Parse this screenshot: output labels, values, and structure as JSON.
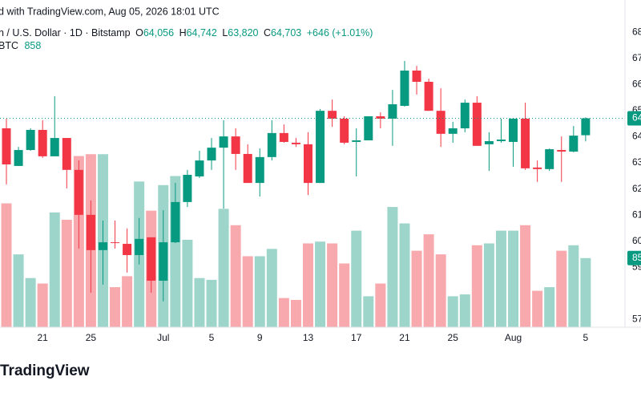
{
  "chart_data": {
    "type": "candlestick",
    "publisher_line": "d with TradingView.com, Aug 05, 2026 18:01 UTC",
    "symbol_line": "n / U.S. Dollar · 1D · Bitstamp",
    "ohlc_labels": [
      "O",
      "H",
      "L",
      "C"
    ],
    "ohlc_values": [
      {
        "value": 64056,
        "label": "64,056"
      },
      {
        "value": 64742,
        "label": "64,742"
      },
      {
        "value": 63820,
        "label": "63,820"
      },
      {
        "value": 64703,
        "label": "64,703"
      }
    ],
    "change": "+646 (+1.01%)",
    "volume_name": "BTC",
    "volume_last": 858,
    "brand": "TradingView",
    "up_color": "#089981",
    "down_color": "#f23645",
    "up_volume_color": "#9ed5cb",
    "down_volume_color": "#f7a9ad",
    "categories": [
      null,
      null,
      null,
      "21",
      null,
      null,
      null,
      "25",
      null,
      null,
      null,
      null,
      null,
      "Jul",
      null,
      null,
      null,
      "5",
      null,
      null,
      null,
      "9",
      null,
      null,
      null,
      "13",
      null,
      null,
      null,
      "17",
      null,
      null,
      null,
      "21",
      null,
      null,
      null,
      "25",
      null,
      null,
      null,
      null,
      "Aug",
      null,
      null,
      null,
      null,
      null,
      "5"
    ],
    "open": [
      64320,
      62880,
      63490,
      64260,
      63250,
      63950,
      62730,
      61010,
      59660,
      59960,
      59900,
      59470,
      60150,
      58490,
      59960,
      61500,
      62480,
      63090,
      63580,
      64010,
      63340,
      62230,
      63220,
      64140,
      63770,
      63710,
      62230,
      64990,
      64690,
      63800,
      63860,
      64780,
      64690,
      65180,
      66530,
      66100,
      64990,
      64110,
      64320,
      65300,
      63710,
      63830,
      63800,
      64690,
      62820,
      62760,
      63490,
      63430,
      64056
    ],
    "high": [
      64690,
      63610,
      64320,
      64630,
      65550,
      63950,
      63090,
      61560,
      60790,
      60790,
      60490,
      60890,
      60150,
      61190,
      62230,
      62730,
      63460,
      63950,
      64630,
      64320,
      63710,
      63550,
      64630,
      64470,
      63950,
      64170,
      65060,
      65420,
      64780,
      64320,
      64780,
      64930,
      65790,
      66900,
      66710,
      66220,
      65850,
      64570,
      65420,
      65550,
      64170,
      64690,
      64690,
      65300,
      63090,
      63550,
      64010,
      64410,
      64742
    ],
    "low": [
      62170,
      62880,
      63460,
      63190,
      63250,
      62020,
      59720,
      58030,
      58340,
      59720,
      58800,
      59110,
      58030,
      57700,
      59930,
      61310,
      62420,
      62730,
      61250,
      62730,
      62230,
      61710,
      63090,
      63770,
      63610,
      61770,
      62230,
      64380,
      63710,
      62480,
      63860,
      64320,
      63650,
      65150,
      65610,
      64990,
      63610,
      63770,
      64170,
      63650,
      62690,
      63770,
      62850,
      62730,
      62270,
      62690,
      62270,
      63400,
      63820
    ],
    "close": [
      62940,
      63490,
      64260,
      63250,
      63950,
      62730,
      61010,
      59660,
      59960,
      59930,
      59470,
      60090,
      58490,
      59960,
      61500,
      62540,
      63090,
      63580,
      64010,
      63340,
      62230,
      63220,
      64140,
      63800,
      63710,
      62230,
      64990,
      64690,
      63770,
      63860,
      64780,
      64690,
      65240,
      66530,
      66100,
      64990,
      64110,
      64320,
      65300,
      63650,
      63830,
      63890,
      64690,
      62790,
      62760,
      63520,
      63430,
      64040,
      64703
    ],
    "volume": [
      1537,
      904,
      610,
      542,
      1424,
      1333,
      2124,
      2147,
      2147,
      497,
      633,
      1808,
      1446,
      1763,
      1876,
      1085,
      610,
      588,
      1469,
      1266,
      881,
      881,
      972,
      362,
      339,
      1040,
      1062,
      1040,
      791,
      1198,
      384,
      542,
      1492,
      1288,
      949,
      1153,
      904,
      384,
      407,
      1017,
      1040,
      1198,
      1198,
      1266,
      452,
      497,
      949,
      1017,
      858
    ],
    "ylim": [
      56710,
      69230
    ],
    "yticks": [
      {
        "value": 68000,
        "label": "68"
      },
      {
        "value": 67000,
        "label": "67"
      },
      {
        "value": 66000,
        "label": "66"
      },
      {
        "value": 65000,
        "label": "65"
      },
      {
        "value": 64000,
        "label": "64"
      },
      {
        "value": 63000,
        "label": "63"
      },
      {
        "value": 62000,
        "label": "62"
      },
      {
        "value": 61000,
        "label": "61"
      },
      {
        "value": 60000,
        "label": "60"
      },
      {
        "value": 59000,
        "label": "59"
      },
      {
        "value": 57000,
        "label": "57"
      }
    ],
    "y2lim": [
      0,
      4060
    ],
    "last_price_tag": {
      "value": 64703,
      "label": "64"
    },
    "last_volume_tag": {
      "value": 858,
      "label": "85"
    },
    "grid": false
  }
}
